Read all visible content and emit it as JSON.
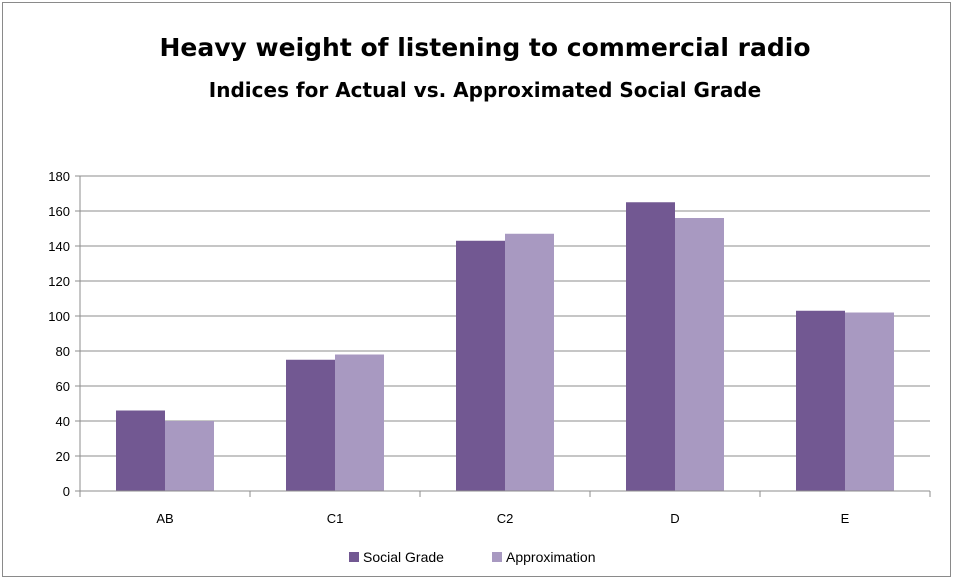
{
  "chart_data": {
    "type": "bar",
    "title": "Heavy weight of listening to commercial radio",
    "subtitle": "Indices for Actual vs. Approximated Social Grade",
    "categories": [
      "AB",
      "C1",
      "C2",
      "D",
      "E"
    ],
    "series": [
      {
        "name": "Social Grade",
        "values": [
          46,
          75,
          143,
          165,
          103
        ],
        "color": "#725892"
      },
      {
        "name": "Approximation",
        "values": [
          40,
          78,
          147,
          156,
          102
        ],
        "color": "#a899c1"
      }
    ],
    "ylim": [
      0,
      180
    ],
    "yticks": [
      0,
      20,
      40,
      60,
      80,
      100,
      120,
      140,
      160,
      180
    ],
    "grid": true,
    "legend_position": "bottom"
  }
}
